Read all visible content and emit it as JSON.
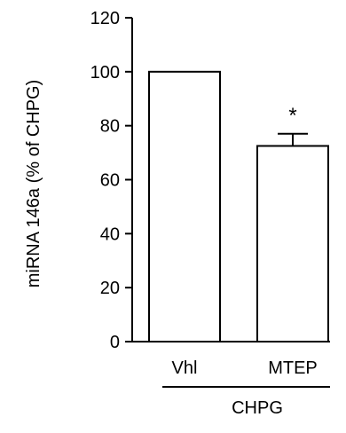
{
  "chart_data": {
    "type": "bar",
    "ylabel": "miRNA 146a (% of CHPG)",
    "xlabel": "",
    "ylim": [
      0,
      120
    ],
    "yticks": [
      0,
      20,
      40,
      60,
      80,
      100,
      120
    ],
    "categories": [
      "Vhl",
      "MTEP"
    ],
    "values": [
      100,
      72.5
    ],
    "errors": [
      0,
      4.5
    ],
    "annotations": [
      {
        "category": "MTEP",
        "text": "*"
      }
    ],
    "group_label": "CHPG",
    "colors": {
      "bar_fill": "#ffffff",
      "bar_stroke": "#000000"
    }
  }
}
